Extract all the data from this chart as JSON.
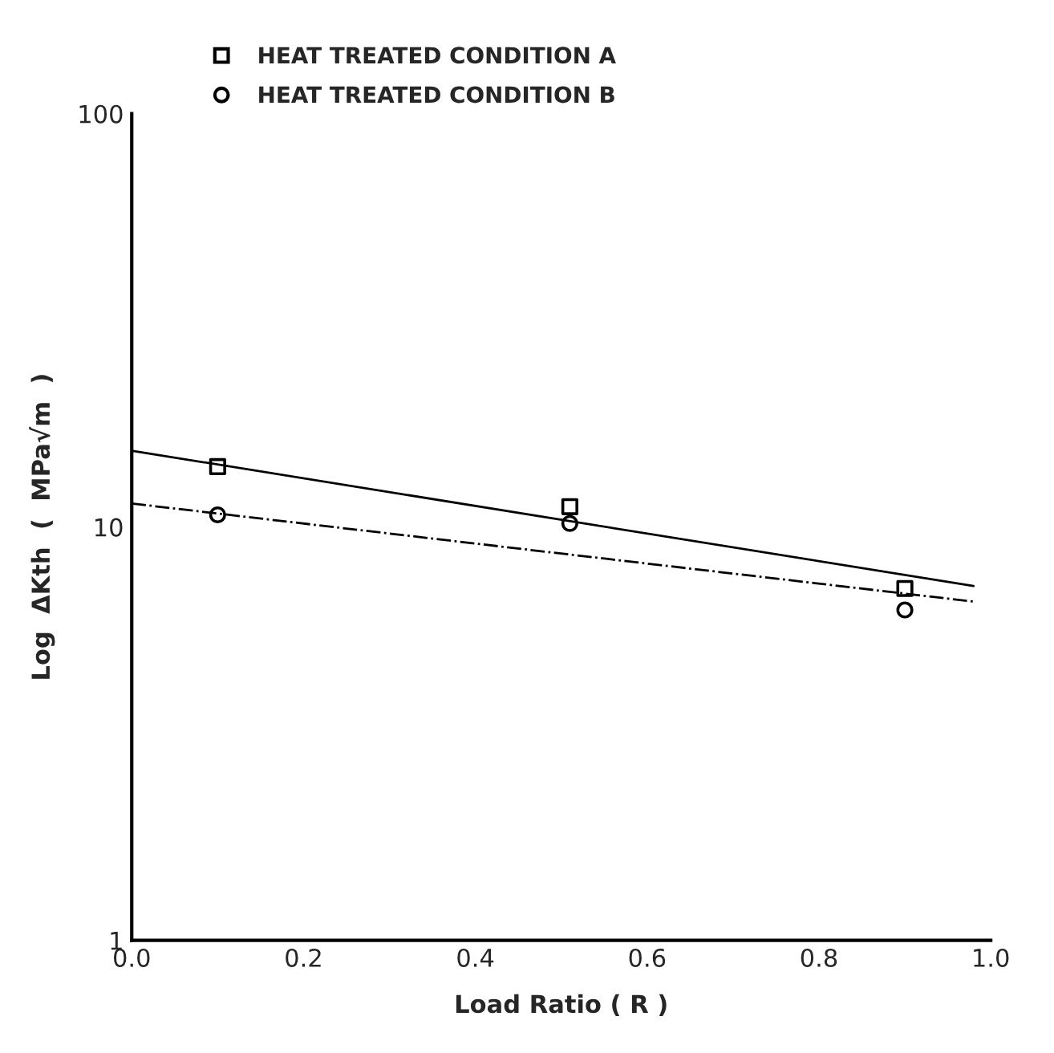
{
  "chart_data": {
    "type": "scatter",
    "xlabel": "Load Ratio ( R )",
    "ylabel": "Log  ΔKth  (  MPa√m  )",
    "log": "y",
    "grid": false,
    "legend": "top left",
    "xlim": [
      0,
      1
    ],
    "xticks": [
      {
        "value": 0,
        "label": "0.0"
      },
      {
        "value": 0.2,
        "label": "0.2"
      },
      {
        "value": 0.4,
        "label": "0.4"
      },
      {
        "value": 0.6,
        "label": "0.6"
      },
      {
        "value": 0.8,
        "label": "0.8"
      },
      {
        "value": 1,
        "label": "1.0"
      }
    ],
    "ylim": [
      1,
      100
    ],
    "yticks": [
      1,
      10,
      100
    ],
    "series": [
      {
        "name": "HEAT TREATED CONDITION A",
        "marker": "square",
        "color": "#000000",
        "x": [
          0.1,
          0.51,
          0.9
        ],
        "values": [
          14.0,
          11.2,
          7.1
        ]
      },
      {
        "name": "HEAT TREATED CONDITION B",
        "marker": "circle",
        "color": "#000000",
        "x": [
          0.1,
          0.51,
          0.9
        ],
        "values": [
          10.7,
          10.2,
          6.3
        ]
      },
      {
        "type": "line",
        "line_style": "solid",
        "color": "#000000",
        "x": [
          0,
          0.98
        ],
        "values": [
          15.3,
          7.2
        ]
      },
      {
        "type": "line",
        "line_style": "dashed",
        "color": "#000000",
        "x": [
          0,
          0.98
        ],
        "values": [
          11.4,
          6.6
        ]
      }
    ]
  }
}
